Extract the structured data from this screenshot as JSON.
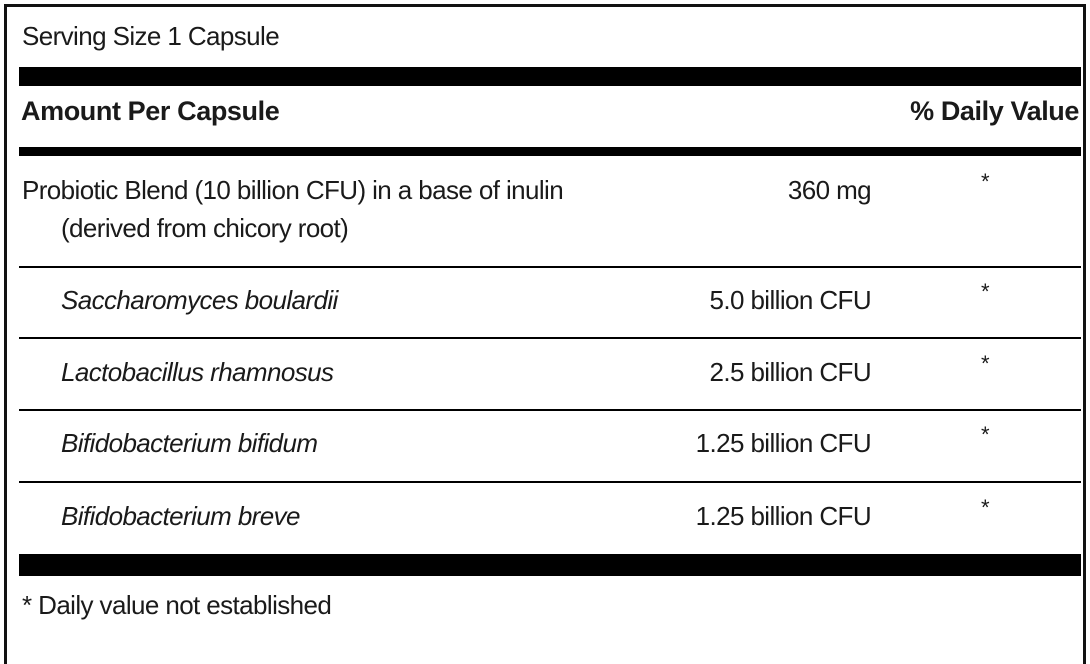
{
  "serving_size": "Serving Size 1 Capsule",
  "header": {
    "amount_label": "Amount Per Capsule",
    "daily_value_label": "% Daily Value"
  },
  "ingredients": [
    {
      "name_line1": "Probiotic Blend (10 billion CFU) in a base of inulin",
      "name_line2": "(derived from chicory root)",
      "amount": "360 mg",
      "daily_value": "*"
    },
    {
      "name": "Saccharomyces boulardii",
      "amount": "5.0 billion CFU",
      "daily_value": "*"
    },
    {
      "name": "Lactobacillus rhamnosus",
      "amount": "2.5 billion CFU",
      "daily_value": "*"
    },
    {
      "name": "Bifidobacterium bifidum",
      "amount": "1.25 billion CFU",
      "daily_value": "*"
    },
    {
      "name": "Bifidobacterium breve",
      "amount": "1.25 billion CFU",
      "daily_value": "*"
    }
  ],
  "footnote": "* Daily value not established"
}
